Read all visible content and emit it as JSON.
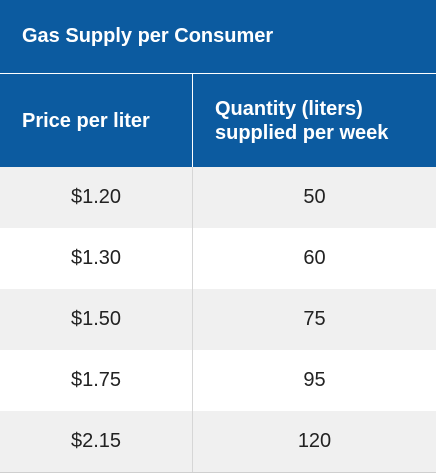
{
  "table": {
    "title": "Gas Supply per Consumer",
    "columns": [
      "Price per liter",
      "Quantity (liters)\nsupplied per week"
    ],
    "rows": [
      {
        "price": "$1.20",
        "quantity": "50"
      },
      {
        "price": "$1.30",
        "quantity": "60"
      },
      {
        "price": "$1.50",
        "quantity": "75"
      },
      {
        "price": "$1.75",
        "quantity": "95"
      },
      {
        "price": "$2.15",
        "quantity": "120"
      }
    ]
  },
  "colors": {
    "header_bg": "#0c5ba0",
    "header_text": "#ffffff",
    "row_shaded": "#f0f0f0",
    "row_plain": "#ffffff"
  }
}
